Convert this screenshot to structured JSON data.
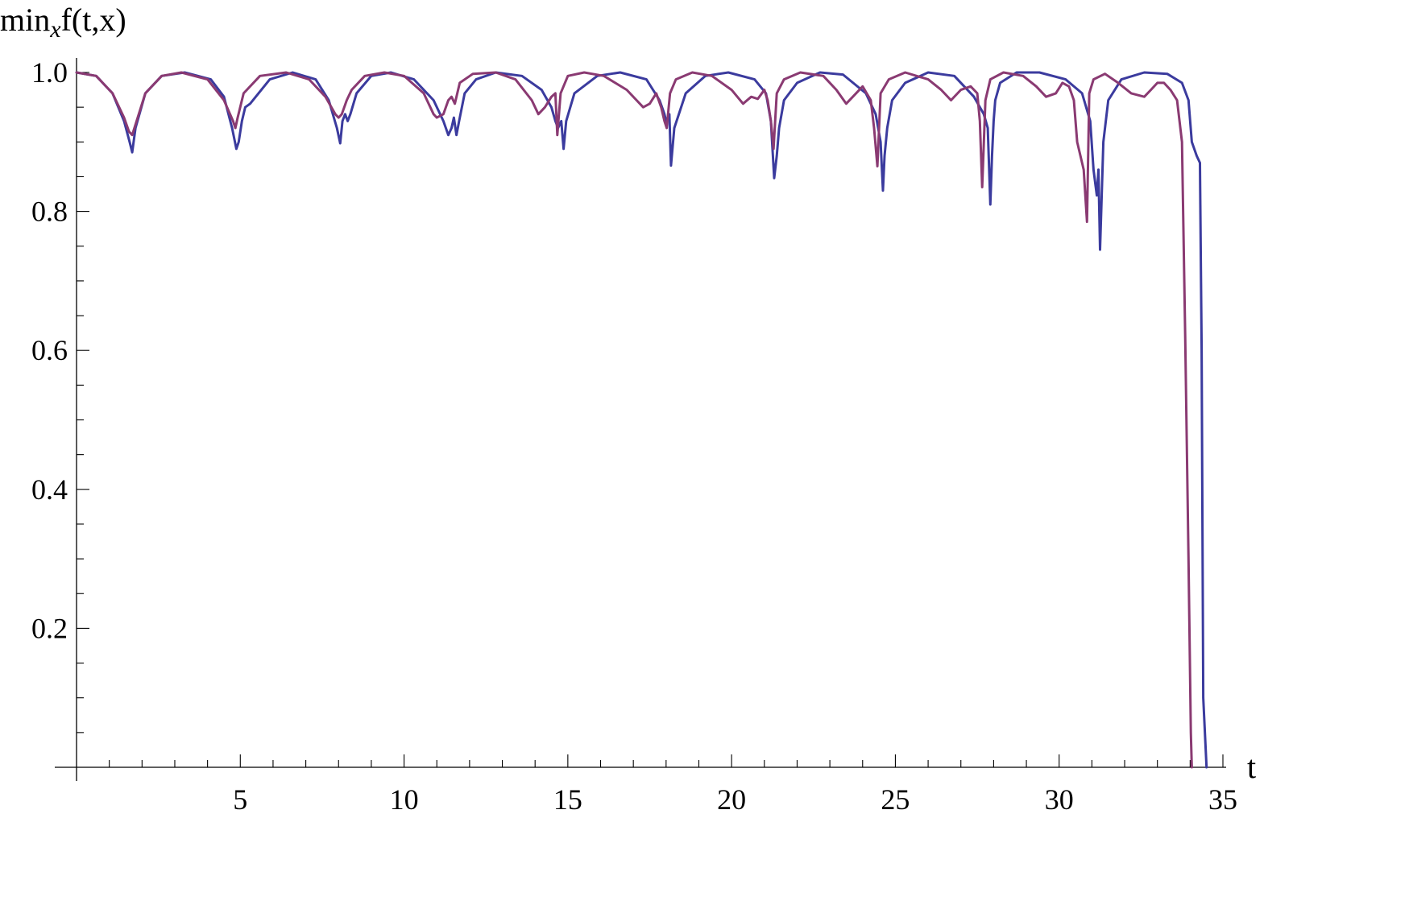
{
  "chart_data": {
    "type": "line",
    "title": "",
    "xlabel": "t",
    "ylabel": "min_x f(t,x)",
    "ylabel_parts": {
      "main": "min",
      "sub": "x",
      "rest": "f(t,x)"
    },
    "xlim": [
      0,
      35
    ],
    "ylim": [
      0,
      1.0
    ],
    "x_ticks": [
      5,
      10,
      15,
      20,
      25,
      30,
      35
    ],
    "x_tick_labels": [
      "5",
      "10",
      "15",
      "20",
      "25",
      "30",
      "35"
    ],
    "x_minor_step": 1,
    "y_ticks": [
      0.2,
      0.4,
      0.6,
      0.8,
      1.0
    ],
    "y_tick_labels": [
      "0.2",
      "0.4",
      "0.6",
      "0.8",
      "1.0"
    ],
    "y_minor_step": 0.05,
    "grid": false,
    "legend": "none",
    "series": [
      {
        "color": "#3b3b9e",
        "x": [
          0,
          0.6,
          1.1,
          1.45,
          1.62,
          1.7,
          1.8,
          2.1,
          2.6,
          3.3,
          4.1,
          4.5,
          4.75,
          4.88,
          4.95,
          5.05,
          5.15,
          5.3,
          5.9,
          6.6,
          7.3,
          7.7,
          7.95,
          8.05,
          8.12,
          8.2,
          8.28,
          8.36,
          8.55,
          9.0,
          9.6,
          10.3,
          10.9,
          11.2,
          11.35,
          11.45,
          11.52,
          11.6,
          11.68,
          11.85,
          12.2,
          12.8,
          13.6,
          14.2,
          14.5,
          14.62,
          14.7,
          14.8,
          14.87,
          14.95,
          15.2,
          15.9,
          16.6,
          17.4,
          17.8,
          17.95,
          18.0,
          18.1,
          18.15,
          18.25,
          18.6,
          19.2,
          19.9,
          20.7,
          21.05,
          21.2,
          21.3,
          21.38,
          21.45,
          21.6,
          22.0,
          22.7,
          23.4,
          24.1,
          24.4,
          24.55,
          24.62,
          24.67,
          24.75,
          24.9,
          25.3,
          26.0,
          26.8,
          27.4,
          27.7,
          27.82,
          27.9,
          27.95,
          28.0,
          28.05,
          28.2,
          28.7,
          29.4,
          30.2,
          30.7,
          30.95,
          31.05,
          31.15,
          31.2,
          31.25,
          31.35,
          31.5,
          31.9,
          32.6,
          33.3,
          33.75,
          33.95,
          34.05,
          34.2,
          34.3,
          34.35,
          34.38,
          34.4,
          34.5
        ],
        "y": [
          1.0,
          0.995,
          0.97,
          0.93,
          0.9,
          0.885,
          0.92,
          0.97,
          0.995,
          1.0,
          0.99,
          0.965,
          0.92,
          0.89,
          0.9,
          0.93,
          0.95,
          0.955,
          0.99,
          1.0,
          0.99,
          0.96,
          0.92,
          0.898,
          0.93,
          0.94,
          0.93,
          0.94,
          0.97,
          0.995,
          1.0,
          0.99,
          0.96,
          0.93,
          0.91,
          0.92,
          0.935,
          0.91,
          0.93,
          0.97,
          0.99,
          1.0,
          0.995,
          0.975,
          0.95,
          0.93,
          0.92,
          0.93,
          0.89,
          0.93,
          0.97,
          0.995,
          1.0,
          0.99,
          0.96,
          0.94,
          0.93,
          0.94,
          0.866,
          0.92,
          0.97,
          0.995,
          1.0,
          0.99,
          0.97,
          0.93,
          0.848,
          0.88,
          0.92,
          0.96,
          0.985,
          1.0,
          0.997,
          0.97,
          0.94,
          0.9,
          0.83,
          0.88,
          0.92,
          0.96,
          0.985,
          1.0,
          0.995,
          0.965,
          0.94,
          0.92,
          0.81,
          0.88,
          0.93,
          0.96,
          0.985,
          1.0,
          1.0,
          0.99,
          0.97,
          0.93,
          0.86,
          0.823,
          0.86,
          0.745,
          0.9,
          0.96,
          0.99,
          1.0,
          0.998,
          0.985,
          0.96,
          0.9,
          0.88,
          0.87,
          0.6,
          0.3,
          0.1,
          0.0
        ]
      },
      {
        "color": "#8a3a72",
        "x": [
          0,
          0.6,
          1.1,
          1.45,
          1.6,
          1.7,
          1.8,
          2.1,
          2.6,
          3.2,
          4.0,
          4.5,
          4.78,
          4.85,
          4.92,
          5.1,
          5.6,
          6.4,
          7.1,
          7.6,
          7.9,
          8.0,
          8.1,
          8.25,
          8.4,
          8.8,
          9.4,
          10.0,
          10.6,
          10.9,
          11.0,
          11.2,
          11.35,
          11.45,
          11.55,
          11.7,
          12.1,
          12.8,
          13.4,
          13.9,
          14.1,
          14.3,
          14.5,
          14.62,
          14.68,
          14.78,
          15.0,
          15.5,
          16.1,
          16.8,
          17.3,
          17.5,
          17.7,
          17.85,
          17.95,
          18.02,
          18.12,
          18.3,
          18.8,
          19.4,
          20.0,
          20.35,
          20.6,
          20.8,
          21.0,
          21.1,
          21.2,
          21.28,
          21.38,
          21.6,
          22.1,
          22.8,
          23.2,
          23.5,
          23.7,
          24.0,
          24.25,
          24.35,
          24.45,
          24.55,
          24.8,
          25.3,
          26.0,
          26.4,
          26.7,
          27.0,
          27.3,
          27.5,
          27.58,
          27.65,
          27.75,
          27.9,
          28.3,
          28.9,
          29.3,
          29.6,
          29.9,
          30.1,
          30.3,
          30.45,
          30.55,
          30.75,
          30.85,
          30.92,
          31.05,
          31.4,
          31.8,
          32.2,
          32.6,
          32.8,
          33.0,
          33.2,
          33.4,
          33.6,
          33.75,
          33.85,
          33.95,
          34.02,
          34.05
        ],
        "y": [
          1.0,
          0.995,
          0.97,
          0.935,
          0.915,
          0.91,
          0.925,
          0.97,
          0.995,
          1.0,
          0.99,
          0.96,
          0.93,
          0.92,
          0.935,
          0.97,
          0.995,
          1.0,
          0.99,
          0.965,
          0.94,
          0.935,
          0.94,
          0.96,
          0.975,
          0.995,
          1.0,
          0.995,
          0.97,
          0.94,
          0.935,
          0.94,
          0.96,
          0.965,
          0.955,
          0.985,
          0.998,
          1.0,
          0.99,
          0.96,
          0.94,
          0.95,
          0.965,
          0.97,
          0.91,
          0.97,
          0.995,
          1.0,
          0.995,
          0.975,
          0.95,
          0.955,
          0.97,
          0.95,
          0.93,
          0.92,
          0.97,
          0.99,
          1.0,
          0.995,
          0.975,
          0.955,
          0.965,
          0.962,
          0.975,
          0.96,
          0.93,
          0.89,
          0.97,
          0.99,
          1.0,
          0.995,
          0.975,
          0.955,
          0.965,
          0.98,
          0.96,
          0.92,
          0.865,
          0.97,
          0.99,
          1.0,
          0.99,
          0.975,
          0.96,
          0.975,
          0.98,
          0.97,
          0.93,
          0.835,
          0.96,
          0.99,
          1.0,
          0.995,
          0.98,
          0.965,
          0.97,
          0.985,
          0.98,
          0.96,
          0.9,
          0.86,
          0.785,
          0.97,
          0.99,
          0.998,
          0.985,
          0.97,
          0.965,
          0.975,
          0.985,
          0.985,
          0.975,
          0.96,
          0.9,
          0.62,
          0.3,
          0.05,
          0.0
        ]
      }
    ]
  }
}
